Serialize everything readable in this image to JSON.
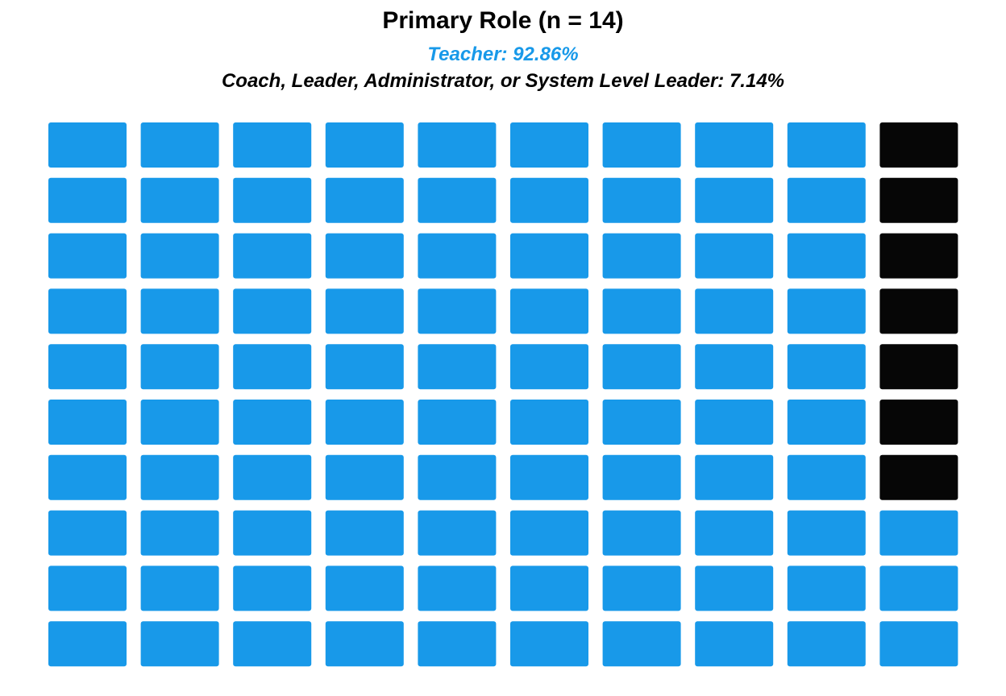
{
  "chart_data": {
    "type": "waffle",
    "title": "Primary Role (n = 14)",
    "subtitle_lines": [
      {
        "text": "Teacher: 92.86%",
        "color": "#1899e9"
      },
      {
        "text": "Coach, Leader, Administrator, or System Level Leader: 7.14%",
        "color": "#000000"
      }
    ],
    "grid": {
      "rows": 10,
      "cols": 10
    },
    "series": [
      {
        "name": "Teacher",
        "percent": 92.86,
        "cells": 93,
        "color": "#1899e9"
      },
      {
        "name": "Coach, Leader, Administrator, or System Level Leader",
        "percent": 7.14,
        "cells": 7,
        "color": "#060606"
      }
    ],
    "fill_order": "last column top-down for second category"
  }
}
